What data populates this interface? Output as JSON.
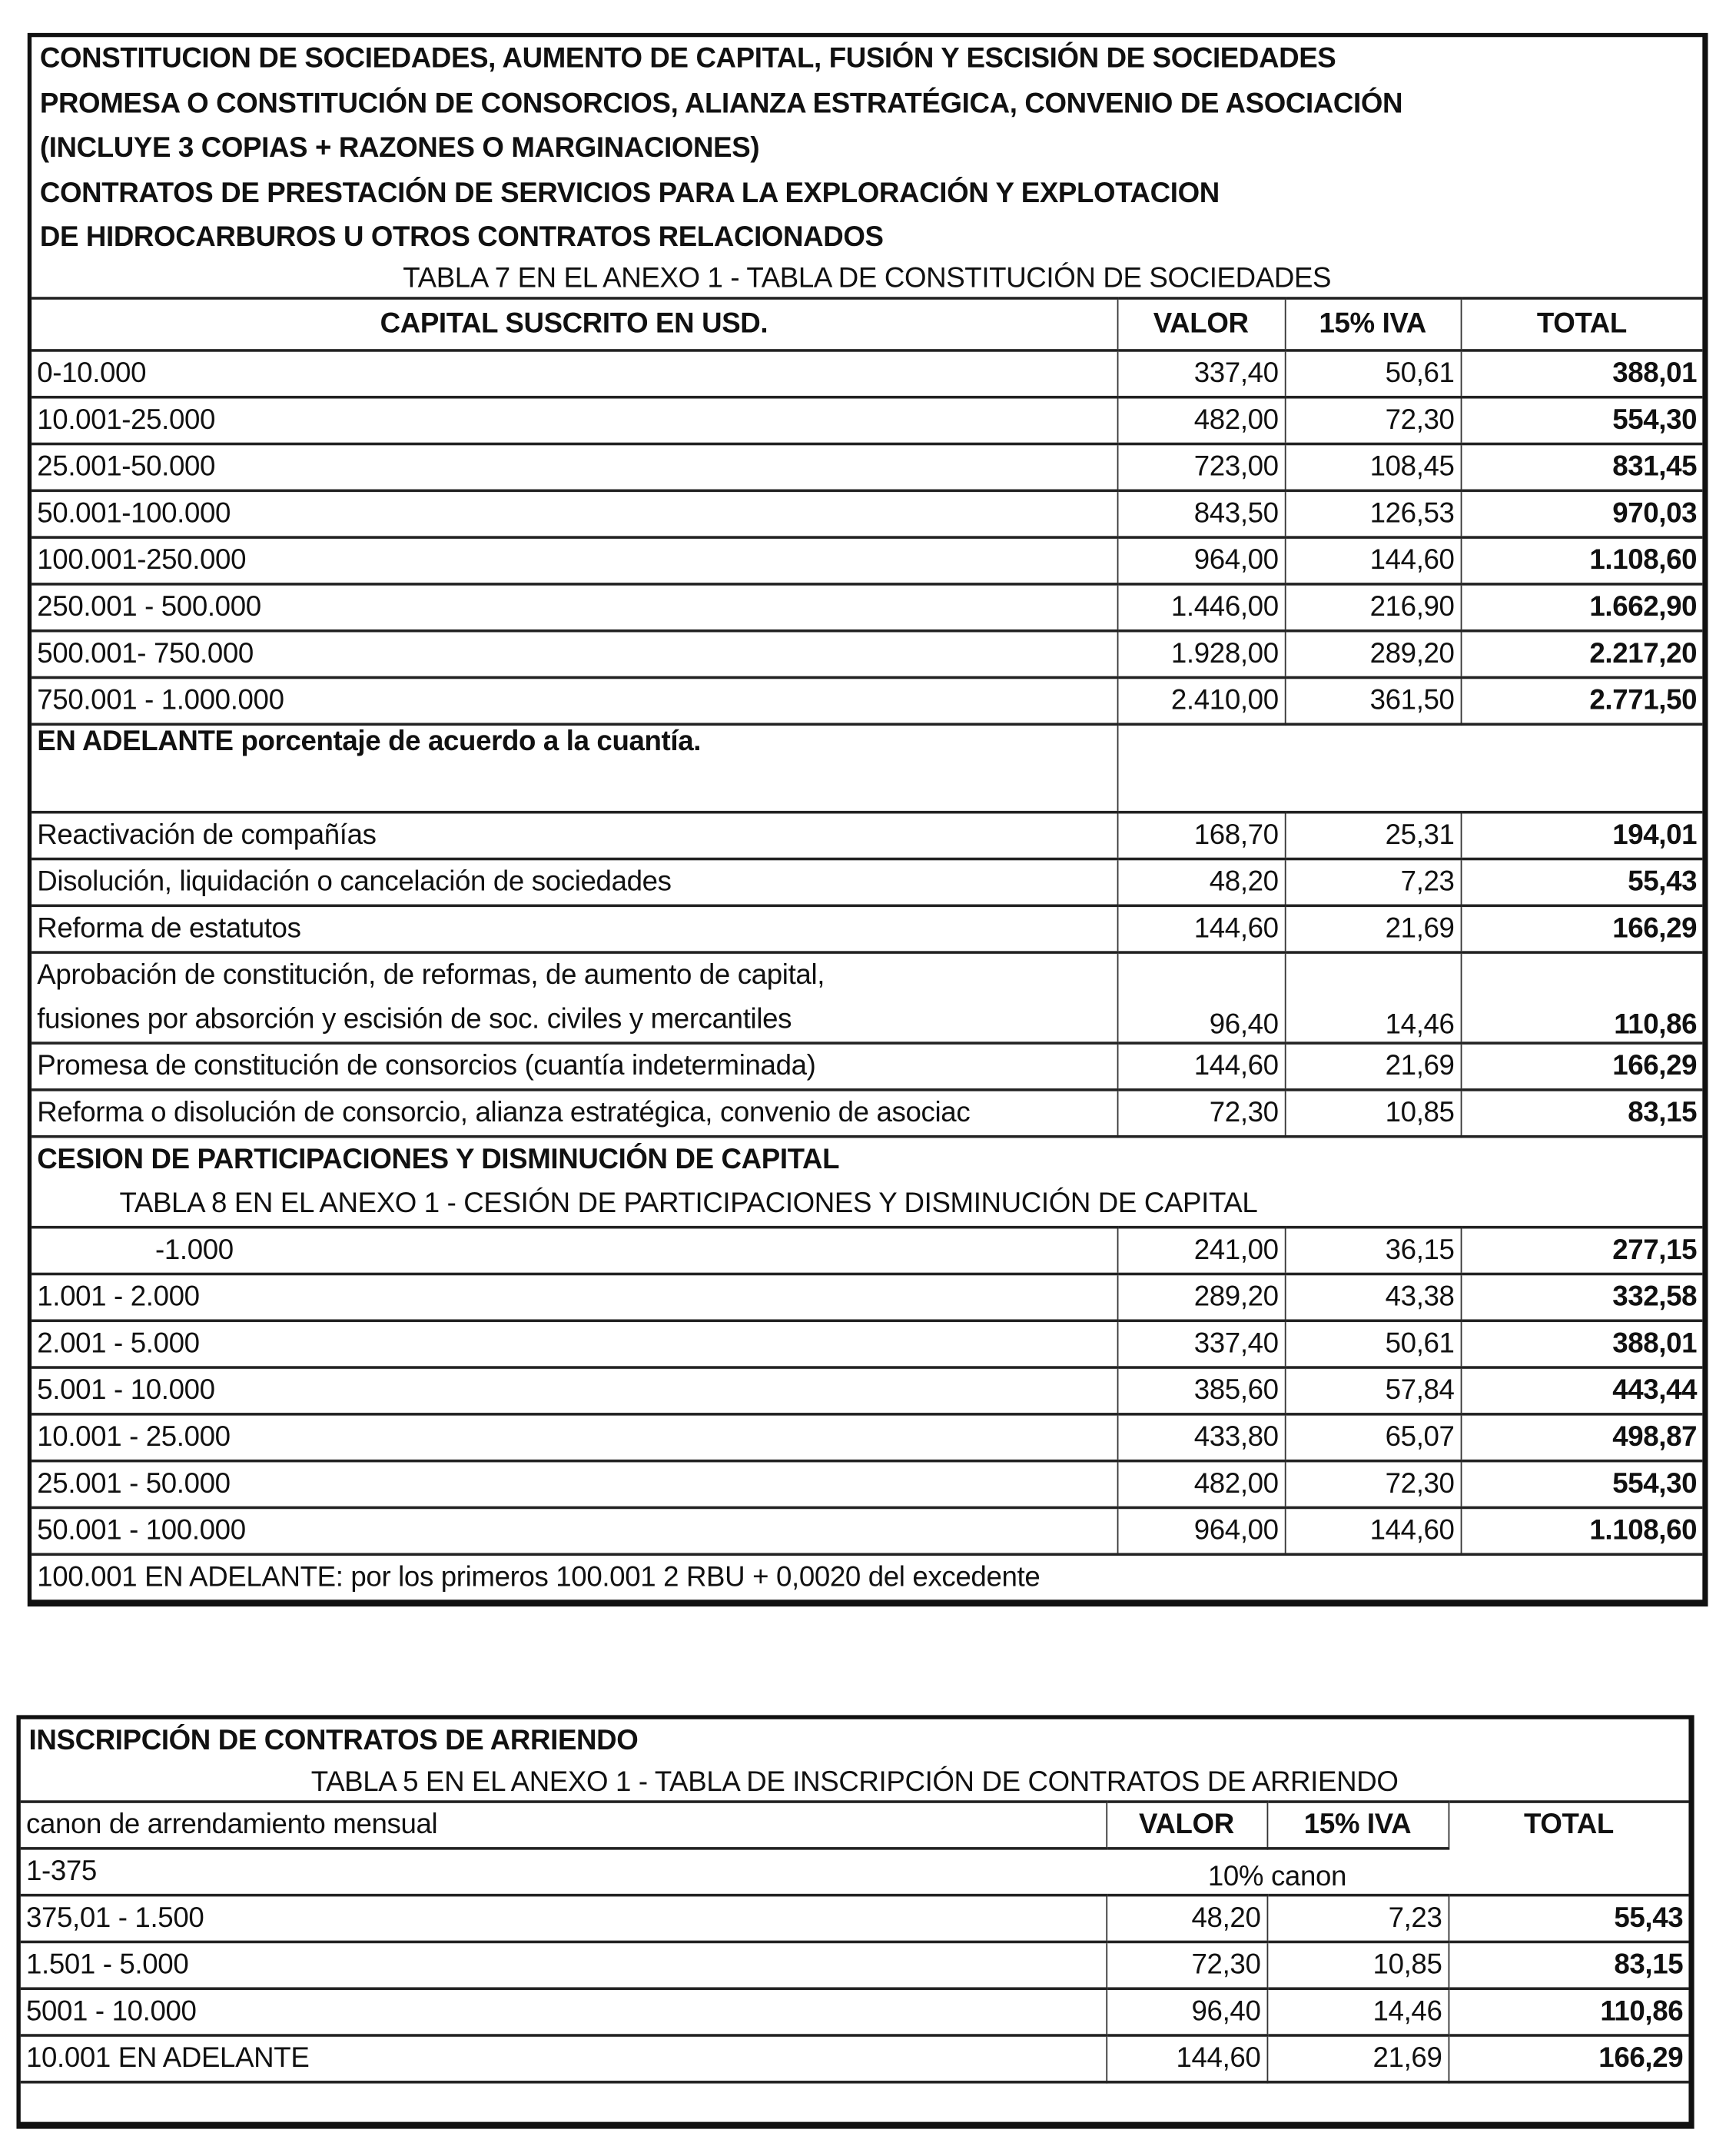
{
  "section1": {
    "heading_lines": [
      "CONSTITUCION DE SOCIEDADES, AUMENTO DE CAPITAL, FUSIÓN Y ESCISIÓN DE SOCIEDADES",
      "PROMESA O CONSTITUCIÓN DE CONSORCIOS, ALIANZA ESTRATÉGICA, CONVENIO DE ASOCIACIÓN",
      "(INCLUYE 3 COPIAS + RAZONES O MARGINACIONES)",
      "CONTRATOS DE PRESTACIÓN DE SERVICIOS PARA LA EXPLORACIÓN Y EXPLOTACION",
      "DE HIDROCARBUROS U OTROS CONTRATOS RELACIONADOS"
    ],
    "table7_title": "TABLA 7 EN EL ANEXO 1 - TABLA DE CONSTITUCIÓN DE SOCIEDADES",
    "headers": {
      "desc": "CAPITAL SUSCRITO EN USD.",
      "valor": "VALOR",
      "iva": "15% IVA",
      "total": "TOTAL"
    },
    "table7_rows": [
      {
        "desc": "0-10.000",
        "valor": "337,40",
        "iva": "50,61",
        "total": "388,01"
      },
      {
        "desc": "10.001-25.000",
        "valor": "482,00",
        "iva": "72,30",
        "total": "554,30"
      },
      {
        "desc": "25.001-50.000",
        "valor": "723,00",
        "iva": "108,45",
        "total": "831,45"
      },
      {
        "desc": "50.001-100.000",
        "valor": "843,50",
        "iva": "126,53",
        "total": "970,03"
      },
      {
        "desc": "100.001-250.000",
        "valor": "964,00",
        "iva": "144,60",
        "total": "1.108,60"
      },
      {
        "desc": "250.001 - 500.000",
        "valor": "1.446,00",
        "iva": "216,90",
        "total": "1.662,90"
      },
      {
        "desc": "500.001- 750.000",
        "valor": "1.928,00",
        "iva": "289,20",
        "total": "2.217,20"
      },
      {
        "desc": "750.001 - 1.000.000",
        "valor": "2.410,00",
        "iva": "361,50",
        "total": "2.771,50"
      }
    ],
    "en_adelante": {
      "bold": "EN ADELANTE",
      "rest": " porcentaje de acuerdo a la cuantía."
    },
    "other_rows": [
      {
        "desc": "Reactivación de compañías",
        "valor": "168,70",
        "iva": "25,31",
        "total": "194,01"
      },
      {
        "desc": "Disolución, liquidación o cancelación de sociedades",
        "valor": "48,20",
        "iva": "7,23",
        "total": "55,43"
      },
      {
        "desc": "Reforma de estatutos",
        "valor": "144,60",
        "iva": "21,69",
        "total": "166,29"
      }
    ],
    "aprobacion": {
      "line1": "Aprobación de constitución, de reformas, de aumento de capital,",
      "line2": "fusiones por absorción y escisión de soc. civiles y mercantiles",
      "valor": "96,40",
      "iva": "14,46",
      "total": "110,86"
    },
    "other_rows2": [
      {
        "desc": "Promesa de constitución de consorcios (cuantía indeterminada)",
        "valor": "144,60",
        "iva": "21,69",
        "total": "166,29"
      },
      {
        "desc": "Reforma o disolución de consorcio, alianza estratégica, convenio de asociac",
        "valor": "72,30",
        "iva": "10,85",
        "total": "83,15"
      }
    ],
    "cesion_heading": "CESION DE PARTICIPACIONES Y DISMINUCIÓN DE CAPITAL",
    "table8_title": "TABLA 8 EN EL ANEXO 1 - CESIÓN DE PARTICIPACIONES Y DISMINUCIÓN DE CAPITAL",
    "table8_rows": [
      {
        "desc": "-1.000",
        "valor": "241,00",
        "iva": "36,15",
        "total": "277,15"
      },
      {
        "desc": "1.001 - 2.000",
        "valor": "289,20",
        "iva": "43,38",
        "total": "332,58"
      },
      {
        "desc": "2.001 - 5.000",
        "valor": "337,40",
        "iva": "50,61",
        "total": "388,01"
      },
      {
        "desc": "5.001 - 10.000",
        "valor": "385,60",
        "iva": "57,84",
        "total": "443,44"
      },
      {
        "desc": "10.001 - 25.000",
        "valor": "433,80",
        "iva": "65,07",
        "total": "498,87"
      },
      {
        "desc": "25.001 - 50.000",
        "valor": "482,00",
        "iva": "72,30",
        "total": "554,30"
      },
      {
        "desc": "50.001 - 100.000",
        "valor": "964,00",
        "iva": "144,60",
        "total": "1.108,60"
      }
    ],
    "table8_footer": "100.001 EN ADELANTE: por los primeros 100.001 2  RBU + 0,0020 del excedente"
  },
  "section2": {
    "heading": "INSCRIPCIÓN DE CONTRATOS DE ARRIENDO",
    "table5_title": "TABLA 5 EN EL ANEXO 1 - TABLA DE INSCRIPCIÓN DE CONTRATOS DE ARRIENDO",
    "headers": {
      "desc": "canon de arrendamiento mensual",
      "valor": "VALOR",
      "iva": "15% IVA",
      "total": "TOTAL"
    },
    "first_row": {
      "desc": "1-375",
      "note": "10% canon"
    },
    "rows": [
      {
        "desc": "375,01 - 1.500",
        "valor": "48,20",
        "iva": "7,23",
        "total": "55,43"
      },
      {
        "desc": "1.501 - 5.000",
        "valor": "72,30",
        "iva": "10,85",
        "total": "83,15"
      },
      {
        "desc": "5001 - 10.000",
        "valor": "96,40",
        "iva": "14,46",
        "total": "110,86"
      },
      {
        "desc": "10.001  EN ADELANTE",
        "valor": "144,60",
        "iva": "21,69",
        "total": "166,29"
      }
    ]
  }
}
